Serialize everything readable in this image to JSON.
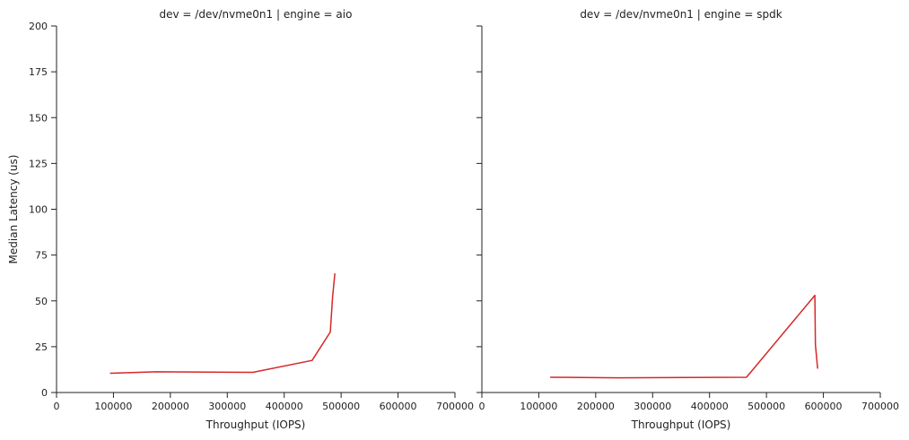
{
  "chart_data": [
    {
      "type": "line",
      "title": "dev = /dev/nvme0n1 | engine = aio",
      "xlabel": "Throughput (IOPS)",
      "ylabel": "Median Latency (us)",
      "xlim": [
        0,
        700000
      ],
      "ylim": [
        0,
        200
      ],
      "xticks": [
        0,
        100000,
        200000,
        300000,
        400000,
        500000,
        600000,
        700000
      ],
      "yticks": [
        0,
        25,
        50,
        75,
        100,
        125,
        150,
        175,
        200
      ],
      "grid": false,
      "series": [
        {
          "color": "#d62728",
          "points": [
            [
              94000,
              10.5
            ],
            [
              175000,
              11.3
            ],
            [
              345000,
              11.0
            ],
            [
              449000,
              17.5
            ],
            [
              481000,
              33.0
            ],
            [
              485000,
              52.0
            ],
            [
              489000,
              65.0
            ]
          ]
        }
      ]
    },
    {
      "type": "line",
      "title": "dev = /dev/nvme0n1 | engine = spdk",
      "xlabel": "Throughput (IOPS)",
      "ylabel": "",
      "xlim": [
        0,
        700000
      ],
      "ylim": [
        0,
        200
      ],
      "xticks": [
        0,
        100000,
        200000,
        300000,
        400000,
        500000,
        600000,
        700000
      ],
      "yticks": [
        0,
        25,
        50,
        75,
        100,
        125,
        150,
        175,
        200
      ],
      "grid": false,
      "series": [
        {
          "color": "#d62728",
          "points": [
            [
              120000,
              8.3
            ],
            [
              240000,
              8.0
            ],
            [
              465000,
              8.3
            ],
            [
              585000,
              53.0
            ],
            [
              586000,
              26.0
            ],
            [
              590000,
              13.0
            ]
          ]
        }
      ]
    }
  ]
}
